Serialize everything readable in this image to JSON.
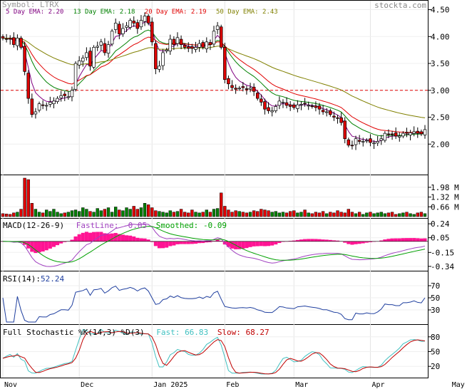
{
  "header": {
    "symbol_label": "Symbol: LTRX",
    "watermark": "stockta.com"
  },
  "colors": {
    "up": "#ffffff",
    "down": "#e00000",
    "vol_up": "#008000",
    "vol_down": "#e00000",
    "ema5": "#800080",
    "ema13": "#008000",
    "ema20": "#e00000",
    "ema50": "#808000",
    "macd_fast": "#a040c0",
    "macd_smooth": "#00a000",
    "macd_hist": "#ff1493",
    "rsi": "#1f3f9f",
    "stoch_fast": "#40c0c0",
    "stoch_slow": "#c00000",
    "ref_line": "#e00000"
  },
  "chart_data": [
    {
      "type": "candlestick",
      "panel": "price",
      "legend": [
        {
          "label": "5 Day EMA:",
          "value": "2.20",
          "key": "ema5"
        },
        {
          "label": "13 Day EMA:",
          "value": "2.18",
          "key": "ema13"
        },
        {
          "label": "20 Day EMA:",
          "value": "2.19",
          "key": "ema20"
        },
        {
          "label": "50 Day EMA:",
          "value": "2.43",
          "key": "ema50"
        }
      ],
      "ylim": [
        1.5,
        4.6
      ],
      "yticks": [
        "4.50",
        "4.00",
        "3.50",
        "3.00",
        "2.50",
        "2.00"
      ],
      "yticks_num": [
        4.5,
        4.0,
        3.5,
        3.0,
        2.5,
        2.0
      ],
      "reference_line": 3.0,
      "xticks": [
        {
          "label": "Nov",
          "index": 0
        },
        {
          "label": "Dec",
          "index": 21
        },
        {
          "label": "Jan 2025",
          "index": 41
        },
        {
          "label": "Feb",
          "index": 61
        },
        {
          "label": "Mar",
          "index": 80
        },
        {
          "label": "Apr",
          "index": 101
        },
        {
          "label": "May",
          "index": 123
        }
      ],
      "closes": [
        3.97,
        3.96,
        3.95,
        3.85,
        3.97,
        3.8,
        3.35,
        2.85,
        2.55,
        2.6,
        2.75,
        2.72,
        2.72,
        2.78,
        2.8,
        2.85,
        2.9,
        2.9,
        2.88,
        3.0,
        3.5,
        3.55,
        3.6,
        3.7,
        3.45,
        3.8,
        3.82,
        3.9,
        3.7,
        3.85,
        4.1,
        4.25,
        4.05,
        4.15,
        4.2,
        4.3,
        4.25,
        4.15,
        4.3,
        4.38,
        4.25,
        3.9,
        3.4,
        3.45,
        3.7,
        3.75,
        3.95,
        3.85,
        3.98,
        3.85,
        3.8,
        3.78,
        3.78,
        3.8,
        3.87,
        3.8,
        3.9,
        3.85,
        4.1,
        4.2,
        3.8,
        3.2,
        3.12,
        3.05,
        3.02,
        3.04,
        3.05,
        3.02,
        3.04,
        2.98,
        2.85,
        2.78,
        2.65,
        2.62,
        2.62,
        2.7,
        2.8,
        2.78,
        2.72,
        2.7,
        2.68,
        2.73,
        2.74,
        2.75,
        2.72,
        2.7,
        2.68,
        2.65,
        2.6,
        2.6,
        2.55,
        2.5,
        2.48,
        2.4,
        2.1,
        1.98,
        1.97,
        2.1,
        2.05,
        2.05,
        2.07,
        2.03,
        2.02,
        2.05,
        2.1,
        2.2,
        2.18,
        2.18,
        2.15,
        2.15,
        2.2,
        2.2,
        2.21,
        2.23,
        2.2,
        2.19,
        2.27
      ]
    },
    {
      "type": "bar",
      "panel": "volume",
      "yticks": [
        "1.98 M",
        "1.32 M",
        "0.66 M"
      ],
      "yticks_num": [
        1.98,
        1.32,
        0.66
      ],
      "ylim": [
        0,
        2.6
      ],
      "values": [
        0.2,
        0.18,
        0.15,
        0.25,
        0.3,
        0.5,
        2.6,
        2.5,
        0.9,
        0.5,
        0.3,
        0.25,
        0.45,
        0.35,
        0.5,
        0.3,
        0.2,
        0.25,
        0.3,
        0.4,
        0.45,
        0.35,
        0.6,
        0.5,
        0.35,
        0.3,
        0.55,
        0.4,
        0.5,
        0.6,
        0.3,
        0.65,
        0.45,
        0.4,
        0.6,
        0.5,
        0.7,
        0.5,
        0.6,
        0.9,
        0.8,
        0.6,
        0.4,
        0.35,
        0.3,
        0.25,
        0.4,
        0.3,
        0.35,
        0.5,
        0.3,
        0.25,
        0.45,
        0.3,
        0.25,
        0.3,
        0.45,
        0.3,
        0.5,
        0.55,
        1.6,
        0.7,
        0.45,
        0.3,
        0.4,
        0.35,
        0.3,
        0.25,
        0.3,
        0.4,
        0.35,
        0.5,
        0.45,
        0.4,
        0.3,
        0.35,
        0.25,
        0.3,
        0.25,
        0.35,
        0.4,
        0.25,
        0.3,
        0.45,
        0.25,
        0.2,
        0.3,
        0.25,
        0.35,
        0.2,
        0.3,
        0.25,
        0.4,
        0.3,
        0.25,
        0.5,
        0.3,
        0.2,
        0.3,
        0.15,
        0.25,
        0.3,
        0.2,
        0.25,
        0.3,
        0.2,
        0.25,
        0.3,
        0.15,
        0.2,
        0.25,
        0.3,
        0.2,
        0.15,
        0.25,
        0.3,
        0.2
      ]
    },
    {
      "type": "line",
      "panel": "macd",
      "title": "MACD(12-26-9)",
      "legend": [
        {
          "label": "FastLine:",
          "value": "-0.05",
          "key": "macd_fast"
        },
        {
          "label": "Smoothed:",
          "value": "-0.09",
          "key": "macd_smooth"
        }
      ],
      "ylim": [
        -0.38,
        0.28
      ],
      "yticks": [
        "0.24",
        "0.05",
        "-0.15",
        "-0.34"
      ],
      "yticks_num": [
        0.24,
        0.05,
        -0.15,
        -0.34
      ]
    },
    {
      "type": "line",
      "panel": "rsi",
      "title": "RSI(14):",
      "value": "52.24",
      "ylim": [
        10,
        90
      ],
      "yticks": [
        "70",
        "50",
        "30"
      ],
      "yticks_num": [
        70,
        50,
        30
      ]
    },
    {
      "type": "line",
      "panel": "stoch",
      "title": "Full Stochastic %K(14,3) %D(3)",
      "legend": [
        {
          "label": "Fast:",
          "value": "66.83",
          "key": "stoch_fast"
        },
        {
          "label": "Slow:",
          "value": "68.27",
          "key": "stoch_slow"
        }
      ],
      "ylim": [
        0,
        100
      ],
      "yticks": [
        "80",
        "50",
        "20"
      ],
      "yticks_num": [
        80,
        50,
        20
      ]
    }
  ]
}
